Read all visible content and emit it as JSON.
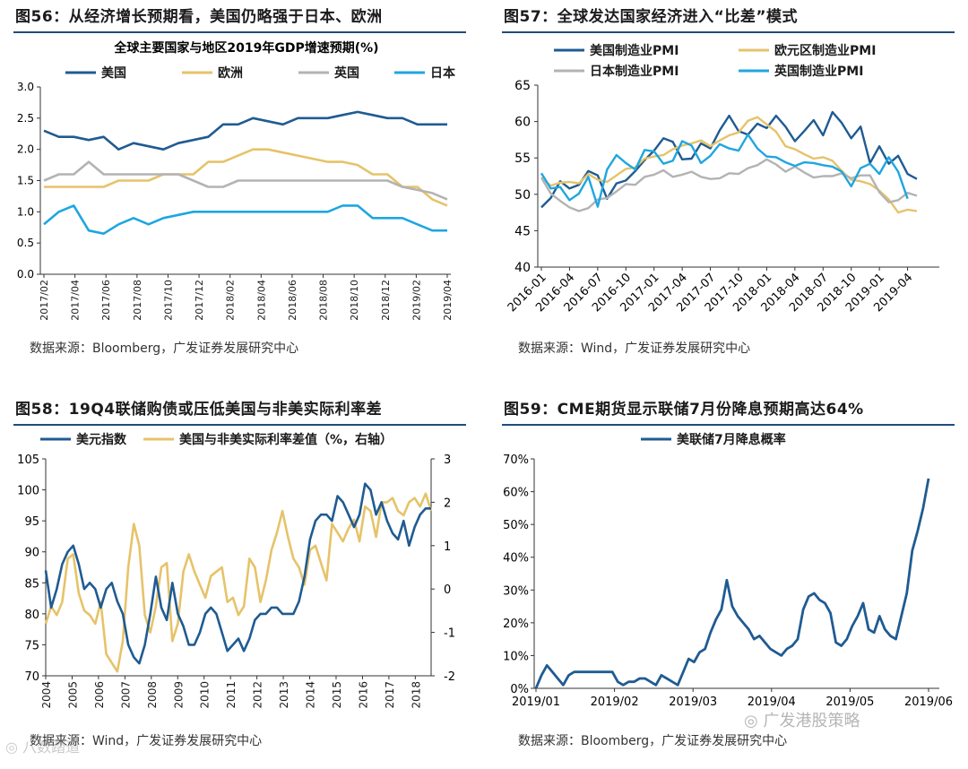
{
  "watermarks": {
    "top": "广发港股策略",
    "bottom": "八数踏道"
  },
  "chart_data": [
    {
      "id": "c56",
      "type": "line",
      "title_prefix": "图56：",
      "title_text": "从经济增长预期看，美国仍略强于日本、欧洲",
      "title": "全球主要国家与地区2019年GDP增速预期(%)",
      "source": "数据来源：Bloomberg，广发证券发展研究中心",
      "ylim": [
        0,
        3.0
      ],
      "yticks": [
        0,
        0.5,
        1.0,
        1.5,
        2.0,
        2.5,
        3.0
      ],
      "ytick_labels": [
        "0.0",
        "0.5",
        "1.0",
        "1.5",
        "2.0",
        "2.5",
        "3.0"
      ],
      "x_tick_labels": [
        "2017/02",
        "2017/04",
        "2017/06",
        "2017/08",
        "2017/10",
        "2017/12",
        "2018/02",
        "2018/04",
        "2018/06",
        "2018/08",
        "2018/10",
        "2018/12",
        "2019/02",
        "2019/04"
      ],
      "series": [
        {
          "name": "美国",
          "color": "#1f5b92",
          "values": [
            2.3,
            2.2,
            2.2,
            2.15,
            2.2,
            2.0,
            2.1,
            2.05,
            2.0,
            2.1,
            2.15,
            2.2,
            2.4,
            2.4,
            2.5,
            2.45,
            2.4,
            2.5,
            2.5,
            2.5,
            2.55,
            2.6,
            2.55,
            2.5,
            2.5,
            2.4,
            2.4,
            2.4
          ]
        },
        {
          "name": "欧洲",
          "color": "#e6c36a",
          "values": [
            1.4,
            1.4,
            1.4,
            1.4,
            1.4,
            1.5,
            1.5,
            1.5,
            1.6,
            1.6,
            1.6,
            1.8,
            1.8,
            1.9,
            2.0,
            2.0,
            1.95,
            1.9,
            1.85,
            1.8,
            1.8,
            1.75,
            1.6,
            1.6,
            1.4,
            1.4,
            1.2,
            1.1
          ]
        },
        {
          "name": "英国",
          "color": "#b3b3b3",
          "values": [
            1.5,
            1.6,
            1.6,
            1.8,
            1.6,
            1.6,
            1.6,
            1.6,
            1.6,
            1.6,
            1.5,
            1.4,
            1.4,
            1.5,
            1.5,
            1.5,
            1.5,
            1.5,
            1.5,
            1.5,
            1.5,
            1.5,
            1.5,
            1.5,
            1.4,
            1.35,
            1.3,
            1.2
          ]
        },
        {
          "name": "日本",
          "color": "#1fa6e0",
          "values": [
            0.8,
            1.0,
            1.1,
            0.7,
            0.65,
            0.8,
            0.9,
            0.8,
            0.9,
            0.95,
            1.0,
            1.0,
            1.0,
            1.0,
            1.0,
            1.0,
            1.0,
            1.0,
            1.0,
            1.0,
            1.1,
            1.1,
            0.9,
            0.9,
            0.9,
            0.8,
            0.7,
            0.7
          ]
        }
      ]
    },
    {
      "id": "c57",
      "type": "line",
      "title_prefix": "图57：",
      "title_text": "全球发达国家经济进入“比差”模式",
      "source": "数据来源：Wind，广发证券发展研究中心",
      "ylim": [
        40,
        65
      ],
      "yticks": [
        40,
        45,
        50,
        55,
        60,
        65
      ],
      "ytick_labels": [
        "40",
        "45",
        "50",
        "55",
        "60",
        "65"
      ],
      "x_tick_labels": [
        "2016-01",
        "2016-04",
        "2016-07",
        "2016-10",
        "2017-01",
        "2017-04",
        "2017-07",
        "2017-10",
        "2018-01",
        "2018-04",
        "2018-07",
        "2018-10",
        "2019-01",
        "2019-04"
      ],
      "series": [
        {
          "name": "美国制造业PMI",
          "color": "#1f5b92",
          "values": [
            48.2,
            49.5,
            51.8,
            50.8,
            51.3,
            53.2,
            52.6,
            49.4,
            51.5,
            51.9,
            53.2,
            54.7,
            56.0,
            57.7,
            57.2,
            54.8,
            54.9,
            57.0,
            56.3,
            58.8,
            60.8,
            58.7,
            58.2,
            59.7,
            59.1,
            60.8,
            59.3,
            57.3,
            58.7,
            60.2,
            58.1,
            61.3,
            59.8,
            57.7,
            59.3,
            54.3,
            56.6,
            54.2,
            55.3,
            52.8,
            52.1
          ]
        },
        {
          "name": "欧元区制造业PMI",
          "color": "#e6c36a",
          "values": [
            52.3,
            51.2,
            51.6,
            51.7,
            51.5,
            52.8,
            52.0,
            51.7,
            52.6,
            53.5,
            53.7,
            54.9,
            55.2,
            55.4,
            56.2,
            56.7,
            57.0,
            57.4,
            56.6,
            57.4,
            58.1,
            58.5,
            60.1,
            60.6,
            59.6,
            58.6,
            56.6,
            56.2,
            55.5,
            54.9,
            55.1,
            54.6,
            53.2,
            52.0,
            51.8,
            51.4,
            50.5,
            49.3,
            47.5,
            47.9,
            47.7
          ]
        },
        {
          "name": "日本制造业PMI",
          "color": "#b3b3b3",
          "values": [
            52.3,
            50.1,
            49.1,
            48.2,
            47.7,
            48.1,
            49.3,
            49.5,
            50.4,
            51.4,
            51.3,
            52.4,
            52.7,
            53.3,
            52.4,
            52.7,
            53.1,
            52.4,
            52.1,
            52.2,
            52.9,
            52.8,
            53.6,
            54.0,
            54.8,
            54.1,
            53.1,
            53.8,
            53.0,
            52.3,
            52.5,
            52.5,
            52.9,
            52.2,
            52.6,
            52.6,
            50.3,
            48.9,
            49.2,
            50.2,
            49.8
          ]
        },
        {
          "name": "英国制造业PMI",
          "color": "#1fa6e0",
          "values": [
            52.9,
            50.8,
            51.0,
            49.2,
            50.1,
            52.4,
            48.3,
            53.4,
            55.4,
            54.3,
            53.4,
            56.1,
            55.9,
            54.2,
            54.6,
            57.3,
            56.7,
            54.3,
            55.3,
            56.9,
            56.3,
            56.0,
            58.2,
            56.3,
            55.2,
            55.1,
            54.4,
            53.9,
            54.4,
            54.3,
            54.0,
            53.8,
            53.1,
            51.1,
            53.6,
            54.2,
            52.8,
            55.1,
            53.1,
            49.4
          ]
        }
      ]
    },
    {
      "id": "c58",
      "type": "line",
      "title_prefix": "图58：",
      "title_text": "19Q4联储购债或压低美国与非美实际利率差",
      "source": "数据来源：Wind，广发证券发展研究中心",
      "left_ylim": [
        70,
        105
      ],
      "left_yticks": [
        70,
        75,
        80,
        85,
        90,
        95,
        100,
        105
      ],
      "left_ytick_labels": [
        "70",
        "75",
        "80",
        "85",
        "90",
        "95",
        "100",
        "105"
      ],
      "right_ylim": [
        -2,
        3
      ],
      "right_yticks": [
        -2,
        -1,
        0,
        1,
        2,
        3
      ],
      "right_ytick_labels": [
        "-2",
        "-1",
        "0",
        "1",
        "2",
        "3"
      ],
      "x_tick_labels": [
        "2004",
        "2005",
        "2006",
        "2007",
        "2008",
        "2009",
        "2010",
        "2011",
        "2012",
        "2013",
        "2014",
        "2015",
        "2016",
        "2017",
        "2018"
      ],
      "series": [
        {
          "name": "美元指数",
          "color": "#1f5b92",
          "axis": "left",
          "values": [
            87,
            81,
            84,
            88,
            90,
            91,
            88,
            84,
            85,
            84,
            81,
            84,
            85,
            82,
            80,
            75,
            73,
            72,
            75,
            80,
            86,
            81,
            79,
            85,
            80,
            78,
            75,
            75,
            77,
            80,
            81,
            80,
            77,
            74,
            75,
            76,
            74,
            76,
            79,
            80,
            80,
            81,
            81,
            80,
            80,
            80,
            82,
            86,
            92,
            95,
            96,
            96,
            95,
            99,
            98,
            96,
            94,
            96,
            101,
            100,
            96,
            98,
            95,
            93,
            92,
            95,
            91,
            94,
            96,
            97,
            97
          ]
        },
        {
          "name": "美国与非美实际利率差值（%，右轴）",
          "color": "#e6c36a",
          "axis": "right",
          "values": [
            -0.8,
            -0.4,
            -0.6,
            -0.3,
            0.7,
            0.8,
            -0.1,
            -0.5,
            -0.6,
            -0.8,
            -0.3,
            -1.5,
            -1.7,
            -1.9,
            -1.2,
            0.5,
            1.5,
            1.0,
            -0.6,
            -1.0,
            -0.4,
            0.5,
            0.6,
            -1.2,
            -0.8,
            0.4,
            0.8,
            0.4,
            0.1,
            -0.2,
            0.3,
            0.4,
            0.5,
            -0.3,
            -0.2,
            -0.6,
            -0.4,
            0.7,
            0.5,
            -0.3,
            0.2,
            0.9,
            1.3,
            1.8,
            1.2,
            0.7,
            0.5,
            0.1,
            0.9,
            1.0,
            0.6,
            0.2,
            1.5,
            1.3,
            1.1,
            1.4,
            1.6,
            1.1,
            1.9,
            1.8,
            1.2,
            2.0,
            2.0,
            2.1,
            1.8,
            1.7,
            2.0,
            2.1,
            1.9,
            2.2,
            1.8
          ]
        }
      ]
    },
    {
      "id": "c59",
      "type": "line",
      "title_prefix": "图59：",
      "title_text": "CME期货显示联储7月份降息预期高达64%",
      "source": "数据来源：Bloomberg，广发证券发展研究中心",
      "ylim": [
        0,
        70
      ],
      "yticks": [
        0,
        10,
        20,
        30,
        40,
        50,
        60,
        70
      ],
      "ytick_labels": [
        "0%",
        "10%",
        "20%",
        "30%",
        "40%",
        "50%",
        "60%",
        "70%"
      ],
      "x_tick_labels": [
        "2019/01",
        "2019/02",
        "2019/03",
        "2019/04",
        "2019/05",
        "2019/06"
      ],
      "series": [
        {
          "name": "美联储7月降息概率",
          "color": "#1f5b92",
          "values": [
            0,
            4,
            7,
            5,
            3,
            1,
            4,
            5,
            5,
            5,
            5,
            5,
            5,
            5,
            5,
            2,
            1,
            2,
            2,
            3,
            3,
            2,
            1,
            4,
            3,
            2,
            1,
            5,
            9,
            8,
            11,
            12,
            17,
            21,
            24,
            33,
            25,
            22,
            20,
            18,
            15,
            16,
            14,
            12,
            11,
            10,
            12,
            13,
            15,
            24,
            28,
            29,
            27,
            26,
            23,
            14,
            13,
            15,
            19,
            22,
            26,
            18,
            17,
            22,
            18,
            16,
            15,
            22,
            29,
            42,
            48,
            55,
            64
          ]
        }
      ]
    }
  ]
}
